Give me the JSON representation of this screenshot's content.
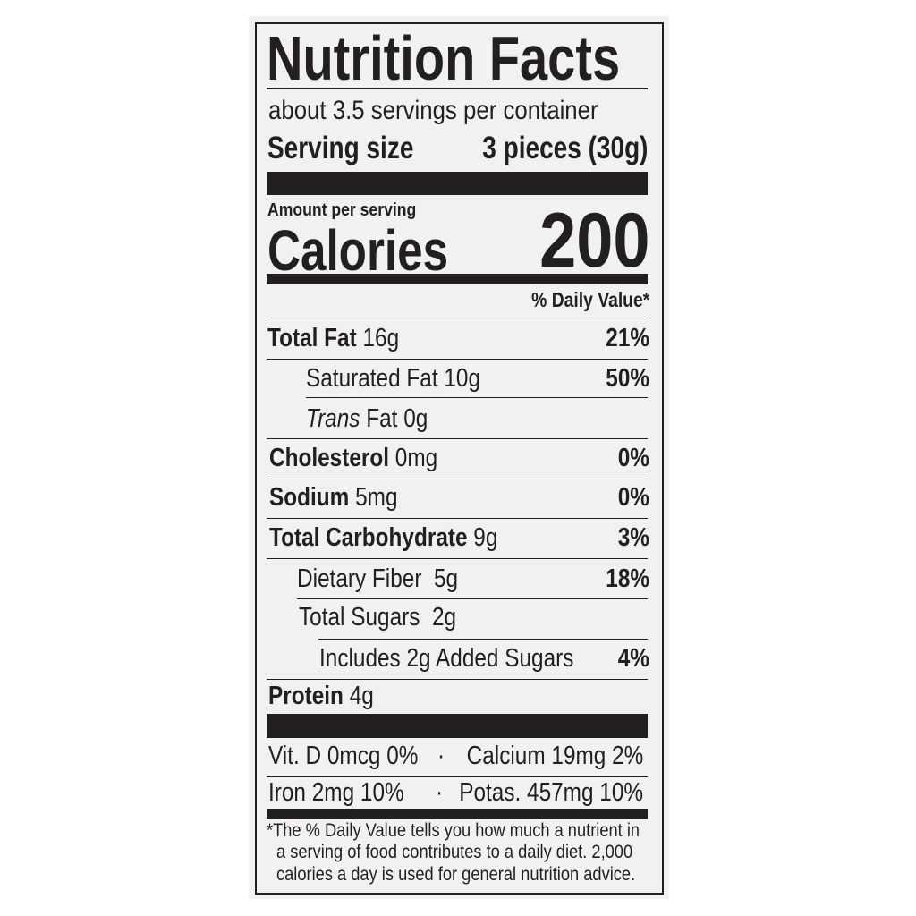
{
  "title": "Nutrition Facts",
  "servings_per_container": "about 3.5 servings per container",
  "serving_size_label": "Serving size",
  "serving_size_value": "3 pieces (30g)",
  "amount_per_serving": "Amount per serving",
  "calories_label": "Calories",
  "calories_value": "200",
  "daily_value_header": "% Daily Value*",
  "nutrients": [
    {
      "name": "Total Fat",
      "amount": "16g",
      "dv": "21%"
    },
    {
      "name": "Saturated Fat",
      "amount": "10g",
      "dv": "50%"
    },
    {
      "name": "Trans",
      "name_suffix": "Fat",
      "amount": "0g",
      "dv": ""
    },
    {
      "name": "Cholesterol",
      "amount": "0mg",
      "dv": "0%"
    },
    {
      "name": "Sodium",
      "amount": "5mg",
      "dv": "0%"
    },
    {
      "name": "Total Carbohydrate",
      "amount": "9g",
      "dv": "3%"
    },
    {
      "name": "Dietary Fiber",
      "amount": "5g",
      "dv": "18%"
    },
    {
      "name": "Total Sugars",
      "amount": "2g",
      "dv": ""
    },
    {
      "name": "Includes 2g Added Sugars",
      "amount": "",
      "dv": "4%"
    },
    {
      "name": "Protein",
      "amount": "4g",
      "dv": ""
    }
  ],
  "vitamins": [
    {
      "left": "Vit. D 0mcg 0%",
      "right": "Calcium 19mg 2%"
    },
    {
      "left": "Iron 2mg 10%",
      "right": "Potas. 457mg 10%"
    }
  ],
  "separator": "·",
  "footnote": [
    "*The % Daily Value tells you how much a nutrient in",
    "a serving of food contributes to a daily diet. 2,000",
    "calories a day is used for general nutrition advice."
  ]
}
